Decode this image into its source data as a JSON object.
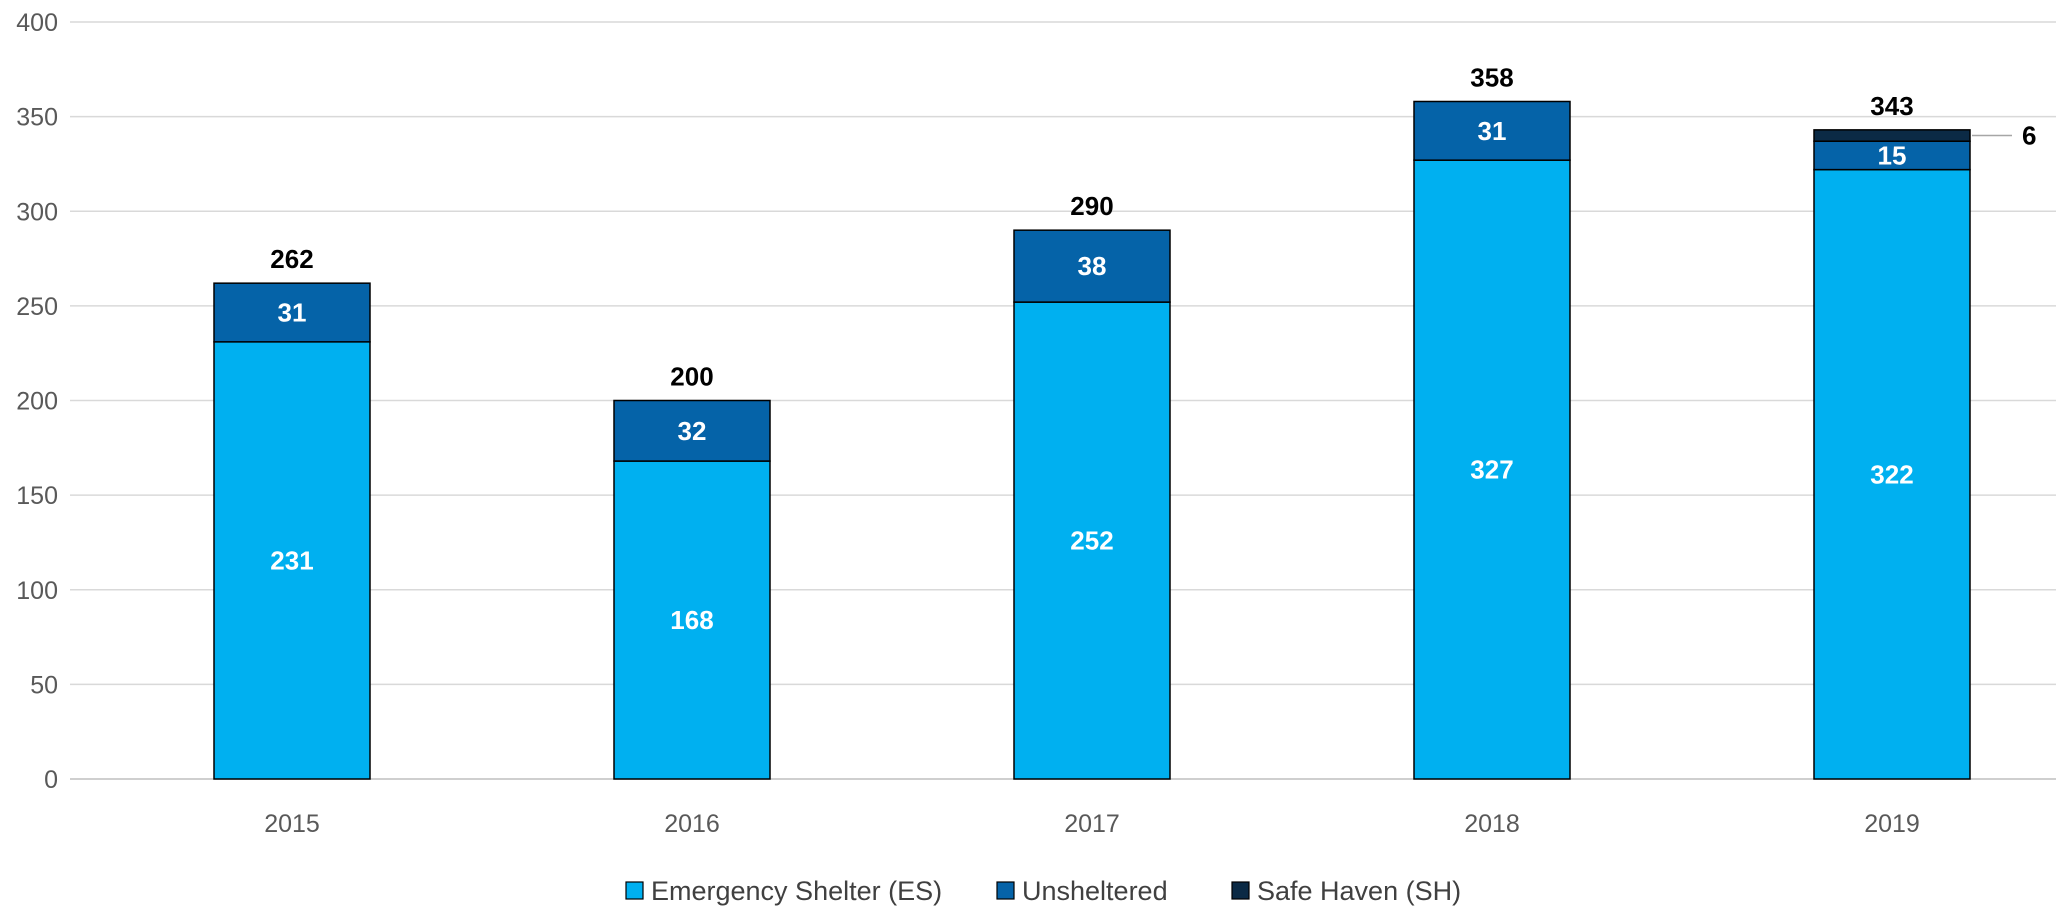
{
  "chart_data": {
    "type": "bar",
    "stacked": true,
    "categories": [
      "2015",
      "2016",
      "2017",
      "2018",
      "2019"
    ],
    "series": [
      {
        "name": "Emergency Shelter (ES)",
        "color": "#00B0F0",
        "values": [
          231,
          168,
          252,
          327,
          322
        ]
      },
      {
        "name": "Unsheltered",
        "color": "#0563A8",
        "values": [
          31,
          32,
          38,
          31,
          15
        ]
      },
      {
        "name": "Safe Haven (SH)",
        "color": "#0B2A45",
        "values": [
          0,
          0,
          0,
          0,
          6
        ]
      }
    ],
    "totals": [
      262,
      200,
      290,
      358,
      343
    ],
    "ylim": [
      0,
      400
    ],
    "yticks": [
      "0",
      "50",
      "100",
      "150",
      "200",
      "250",
      "300",
      "350",
      "400"
    ],
    "grid": true,
    "legend": "bottom",
    "title": "",
    "xlabel": "",
    "ylabel": ""
  }
}
